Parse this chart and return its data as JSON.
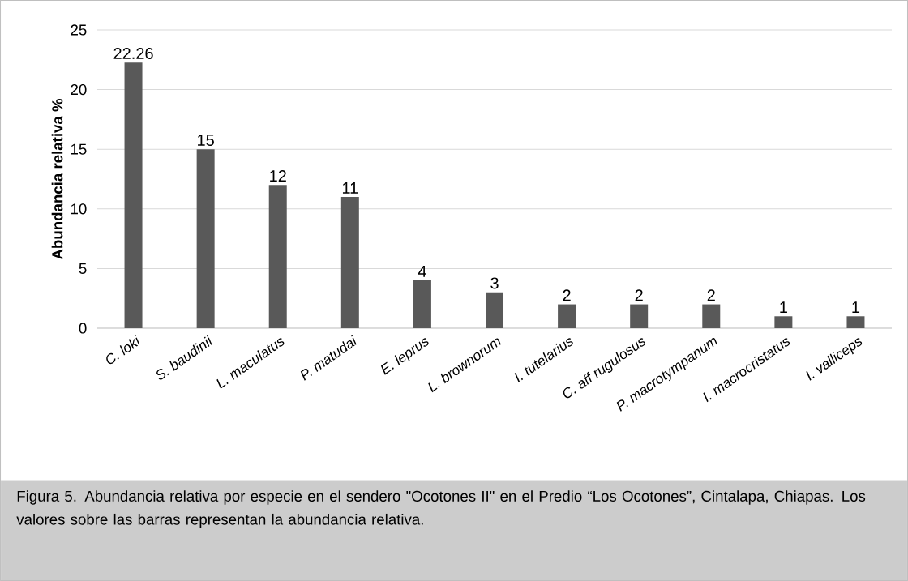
{
  "chart_data": {
    "type": "bar",
    "ylabel": "Abundancia relativa %",
    "categories": [
      "C. loki",
      "S. baudinii",
      "L. maculatus",
      "P. matudai",
      "E. leprus",
      "L. brownorum",
      "I. tutelarius",
      "C. aff rugulosus",
      "P. macrotympanum",
      "I. macrocristatus",
      "I. valliceps"
    ],
    "values": [
      22.26,
      15,
      12,
      11,
      4,
      3,
      2,
      2,
      2,
      1,
      1
    ],
    "value_labels": [
      "22.26",
      "15",
      "12",
      "11",
      "4",
      "3",
      "2",
      "2",
      "2",
      "1",
      "1"
    ],
    "color": "#595959",
    "ylim": [
      0,
      25
    ],
    "yticks": [
      0,
      5,
      10,
      15,
      20,
      25
    ],
    "grid": "y",
    "annotations": [
      "Figura 5. Abundancia relativa por especie en el sendero \"Ocotones II\" en el Predio “Los Ocotones”, Cintalapa, Chiapas. Los valores sobre las barras representan la abundancia relativa."
    ]
  }
}
